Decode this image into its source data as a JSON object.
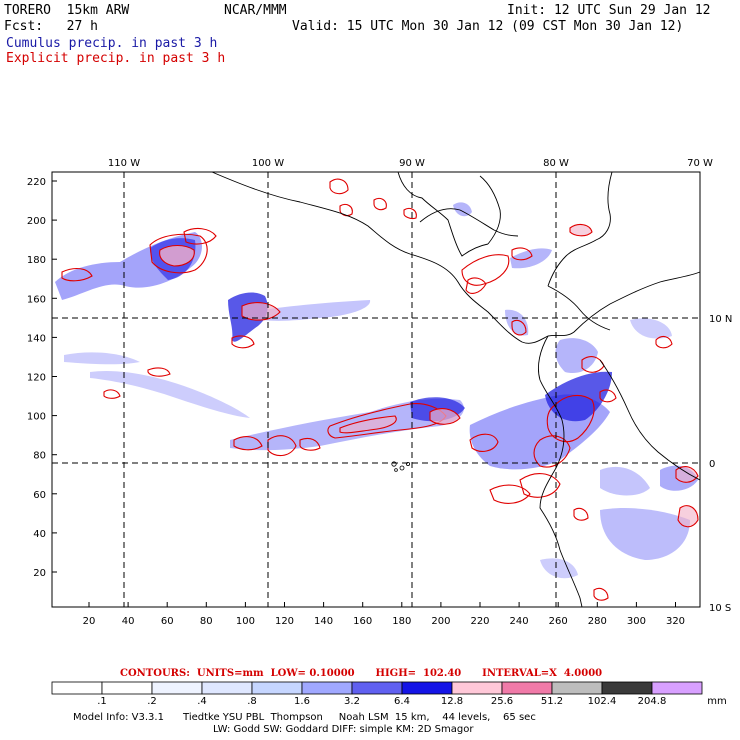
{
  "header": {
    "model": "TORERO  15km ARW",
    "org": "NCAR/MMM",
    "init": "Init: 12 UTC Sun 29 Jan 12",
    "fcst": "Fcst:   27 h",
    "valid": "Valid: 15 UTC Mon 30 Jan 12 (09 CST Mon 30 Jan 12)",
    "legend_cumulus": "Cumulus precip. in past 3 h",
    "legend_explicit": "Explicit precip. in past 3 h"
  },
  "axes": {
    "top_labels": [
      "110 W",
      "100 W",
      "90 W",
      "80 W",
      "70 W"
    ],
    "right_labels": [
      "10 N",
      "0",
      "10 S"
    ],
    "left_ticks": [
      "220",
      "200",
      "180",
      "160",
      "140",
      "120",
      "100",
      "80",
      "60",
      "40",
      "20"
    ],
    "bottom_ticks": [
      "20",
      "40",
      "60",
      "80",
      "100",
      "120",
      "140",
      "160",
      "180",
      "200",
      "220",
      "240",
      "260",
      "280",
      "300",
      "320"
    ]
  },
  "contours_text": "CONTOURS:  UNITS=mm  LOW= 0.10000      HIGH=  102.40      INTERVAL=X  4.0000",
  "colorbar": {
    "labels": [
      ".1",
      ".2",
      ".4",
      ".8",
      "1.6",
      "3.2",
      "6.4",
      "12.8",
      "25.6",
      "51.2",
      "102.4",
      "204.8"
    ],
    "unit": "mm",
    "colors": [
      "#ffffff",
      "#ffffff",
      "#eef3ff",
      "#dfe7ff",
      "#c6d6ff",
      "#a0a8ff",
      "#6060f0",
      "#1414e6",
      "#ffc8d8",
      "#f07aa8",
      "#bdbdbd",
      "#3a3a3a",
      "#d8a0ff"
    ]
  },
  "model_info": {
    "line1": "Model Info: V3.3.1      Tiedtke YSU PBL  Thompson     Noah LSM  15 km,    44 levels,    65 sec",
    "line2": "LW: Godd SW: Goddard DIFF: simple KM: 2D Smagor"
  },
  "colors": {
    "cumulus_blue": "#3a3af0",
    "explicit_red": "#e00000",
    "land_lines": "#000000"
  }
}
